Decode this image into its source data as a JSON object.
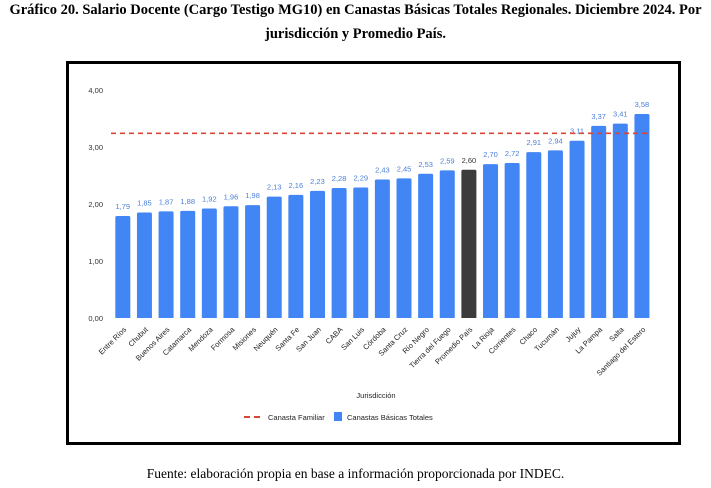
{
  "title_line1": "Gráfico 20. Salario Docente (Cargo Testigo MG10) en Canastas Básicas Totales Regionales. Diciembre 2024. Por",
  "title_line2": "jurisdicción y Promedio País.",
  "footer": "Fuente: elaboración propia en base a información proporcionada por INDEC.",
  "chart_data": {
    "type": "bar",
    "title": "Salario Docente (Cargo Testigo MG10) en Canastas Básicas Totales Regionales. Diciembre 2024",
    "xlabel": "Jurisdicción",
    "ylabel": "",
    "ylim": [
      0,
      4
    ],
    "yticks": [
      "0,00",
      "1,00",
      "2,00",
      "3,00",
      "4,00"
    ],
    "categories": [
      "Entre Ríos",
      "Chubut",
      "Buenos Aires",
      "Catamarca",
      "Mendoza",
      "Formosa",
      "Misiones",
      "Neuquén",
      "Santa Fe",
      "San Juan",
      "CABA",
      "San Luis",
      "Córdoba",
      "Santa Cruz",
      "Río Negro",
      "Tierra del Fuego",
      "Promedio País",
      "La Rioja",
      "Corrientes",
      "Chaco",
      "Tucumán",
      "Jujuy",
      "La Pampa",
      "Salta",
      "Santiago del Estero"
    ],
    "series": [
      {
        "name": "Canastas Básicas Totales",
        "type": "bar",
        "color": "#4285f4",
        "highlight_color": "#3c3c3c",
        "highlight_category": "Promedio País",
        "values": [
          1.79,
          1.85,
          1.87,
          1.88,
          1.92,
          1.96,
          1.98,
          2.13,
          2.16,
          2.23,
          2.28,
          2.29,
          2.43,
          2.45,
          2.53,
          2.59,
          2.6,
          2.7,
          2.72,
          2.91,
          2.94,
          3.11,
          3.37,
          3.41,
          3.58
        ],
        "labels": [
          "1,79",
          "1,85",
          "1,87",
          "1,88",
          "1,92",
          "1,96",
          "1,98",
          "2,13",
          "2,16",
          "2,23",
          "2,28",
          "2,29",
          "2,43",
          "2,45",
          "2,53",
          "2,59",
          "2,60",
          "2,70",
          "2,72",
          "2,91",
          "2,94",
          "3,11",
          "3,37",
          "3,41",
          "3,58"
        ]
      },
      {
        "name": "Canasta Familiar",
        "type": "line",
        "style": "dashed",
        "color": "#db4437",
        "value": 3.24
      }
    ],
    "legend": {
      "placement": "bottom",
      "entries": [
        "Canasta Familiar",
        "Canastas Básicas Totales"
      ]
    }
  }
}
